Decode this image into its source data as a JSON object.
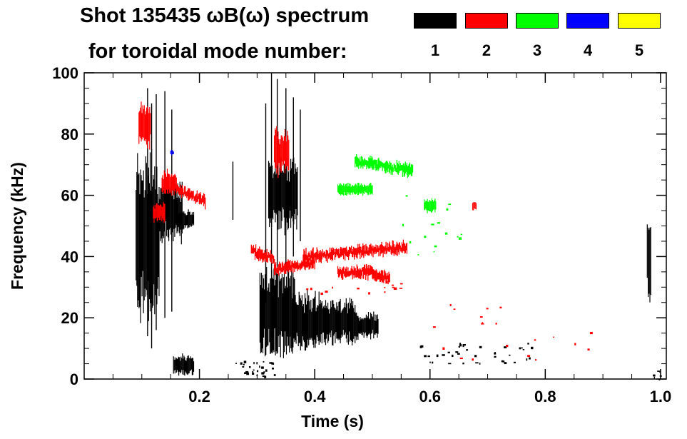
{
  "chart_data": {
    "type": "heatmap",
    "title": "Shot 135435 ωB(ω) spectrum",
    "subtitle": "for toroidal mode number:",
    "xlabel": "Time (s)",
    "ylabel": "Frequency (kHz)",
    "xlim": [
      0.0,
      1.01
    ],
    "ylim": [
      0,
      100
    ],
    "x_ticks": [
      0.2,
      0.4,
      0.6,
      0.8,
      1.0
    ],
    "x_tick_labels": [
      "0.2",
      "0.4",
      "0.6",
      "0.8",
      "1.0"
    ],
    "y_ticks": [
      0,
      20,
      40,
      60,
      80,
      100
    ],
    "y_tick_labels": [
      "0",
      "20",
      "40",
      "60",
      "80",
      "100"
    ],
    "legend": [
      {
        "label": "1",
        "color": "#000000"
      },
      {
        "label": "2",
        "color": "#ff0000"
      },
      {
        "label": "3",
        "color": "#00ff00"
      },
      {
        "label": "4",
        "color": "#0000ff"
      },
      {
        "label": "5",
        "color": "#ffff00"
      }
    ],
    "features": [
      {
        "mode": 1,
        "kind": "blob",
        "t": [
          0.09,
          0.13
        ],
        "f": [
          20,
          72
        ]
      },
      {
        "mode": 1,
        "kind": "blob",
        "t": [
          0.13,
          0.17
        ],
        "f": [
          45,
          65
        ]
      },
      {
        "mode": 1,
        "kind": "blob",
        "t": [
          0.16,
          0.19
        ],
        "f": [
          49,
          55
        ]
      },
      {
        "mode": 1,
        "kind": "blob",
        "t": [
          0.155,
          0.19
        ],
        "f": [
          1,
          8
        ]
      },
      {
        "mode": 1,
        "kind": "vline",
        "t": 0.11,
        "f": [
          14,
          95
        ]
      },
      {
        "mode": 1,
        "kind": "vline",
        "t": 0.117,
        "f": [
          10,
          90
        ]
      },
      {
        "mode": 1,
        "kind": "vline",
        "t": 0.125,
        "f": [
          16,
          93
        ]
      },
      {
        "mode": 1,
        "kind": "vline",
        "t": 0.14,
        "f": [
          20,
          94
        ]
      },
      {
        "mode": 1,
        "kind": "vline",
        "t": 0.152,
        "f": [
          22,
          88
        ]
      },
      {
        "mode": 1,
        "kind": "vline",
        "t": 0.258,
        "f": [
          52,
          71
        ]
      },
      {
        "mode": 1,
        "kind": "vline",
        "t": 0.315,
        "f": [
          25,
          90
        ]
      },
      {
        "mode": 1,
        "kind": "vline",
        "t": 0.325,
        "f": [
          28,
          100
        ]
      },
      {
        "mode": 1,
        "kind": "vline",
        "t": 0.335,
        "f": [
          30,
          98
        ]
      },
      {
        "mode": 1,
        "kind": "vline",
        "t": 0.35,
        "f": [
          35,
          95
        ]
      },
      {
        "mode": 1,
        "kind": "vline",
        "t": 0.363,
        "f": [
          40,
          92
        ]
      },
      {
        "mode": 1,
        "kind": "vline",
        "t": 0.375,
        "f": [
          45,
          88
        ]
      },
      {
        "mode": 1,
        "kind": "blob",
        "t": [
          0.32,
          0.37
        ],
        "f": [
          48,
          72
        ]
      },
      {
        "mode": 1,
        "kind": "blob",
        "t": [
          0.305,
          0.365
        ],
        "f": [
          8,
          36
        ]
      },
      {
        "mode": 1,
        "kind": "blob",
        "t": [
          0.36,
          0.41
        ],
        "f": [
          9,
          28
        ]
      },
      {
        "mode": 1,
        "kind": "blob",
        "t": [
          0.41,
          0.47
        ],
        "f": [
          11,
          26
        ]
      },
      {
        "mode": 1,
        "kind": "blob",
        "t": [
          0.47,
          0.51
        ],
        "f": [
          13,
          22
        ]
      },
      {
        "mode": 1,
        "kind": "blob",
        "t": [
          0.977,
          0.983
        ],
        "f": [
          24,
          56
        ]
      },
      {
        "mode": 2,
        "kind": "blob",
        "t": [
          0.095,
          0.115
        ],
        "f": [
          76,
          90
        ]
      },
      {
        "mode": 2,
        "kind": "blob",
        "t": [
          0.135,
          0.16
        ],
        "f": [
          60,
          68
        ]
      },
      {
        "mode": 2,
        "kind": "band",
        "t": [
          0.16,
          0.21
        ],
        "f": [
          62,
          58
        ]
      },
      {
        "mode": 2,
        "kind": "blob",
        "t": [
          0.12,
          0.14
        ],
        "f": [
          51,
          58
        ]
      },
      {
        "mode": 2,
        "kind": "band",
        "t": [
          0.29,
          0.33
        ],
        "f": [
          42,
          39
        ]
      },
      {
        "mode": 2,
        "kind": "band",
        "t": [
          0.33,
          0.4
        ],
        "f": [
          36,
          38
        ]
      },
      {
        "mode": 2,
        "kind": "band",
        "t": [
          0.38,
          0.56
        ],
        "f": [
          40,
          43
        ]
      },
      {
        "mode": 2,
        "kind": "band",
        "t": [
          0.44,
          0.5
        ],
        "f": [
          35,
          35
        ]
      },
      {
        "mode": 2,
        "kind": "band",
        "t": [
          0.5,
          0.53
        ],
        "f": [
          34,
          33
        ]
      },
      {
        "mode": 2,
        "kind": "blob",
        "t": [
          0.33,
          0.355
        ],
        "f": [
          66,
          82
        ]
      },
      {
        "mode": 2,
        "kind": "blob",
        "t": [
          0.674,
          0.68
        ],
        "f": [
          55,
          58
        ]
      },
      {
        "mode": 3,
        "kind": "band",
        "t": [
          0.47,
          0.57
        ],
        "f": [
          71,
          68
        ]
      },
      {
        "mode": 3,
        "kind": "blob",
        "t": [
          0.44,
          0.5
        ],
        "f": [
          60,
          64
        ]
      },
      {
        "mode": 3,
        "kind": "blob",
        "t": [
          0.59,
          0.61
        ],
        "f": [
          54,
          59
        ]
      },
      {
        "mode": 4,
        "kind": "blob",
        "t": [
          0.15,
          0.155
        ],
        "f": [
          73,
          75
        ]
      }
    ]
  }
}
